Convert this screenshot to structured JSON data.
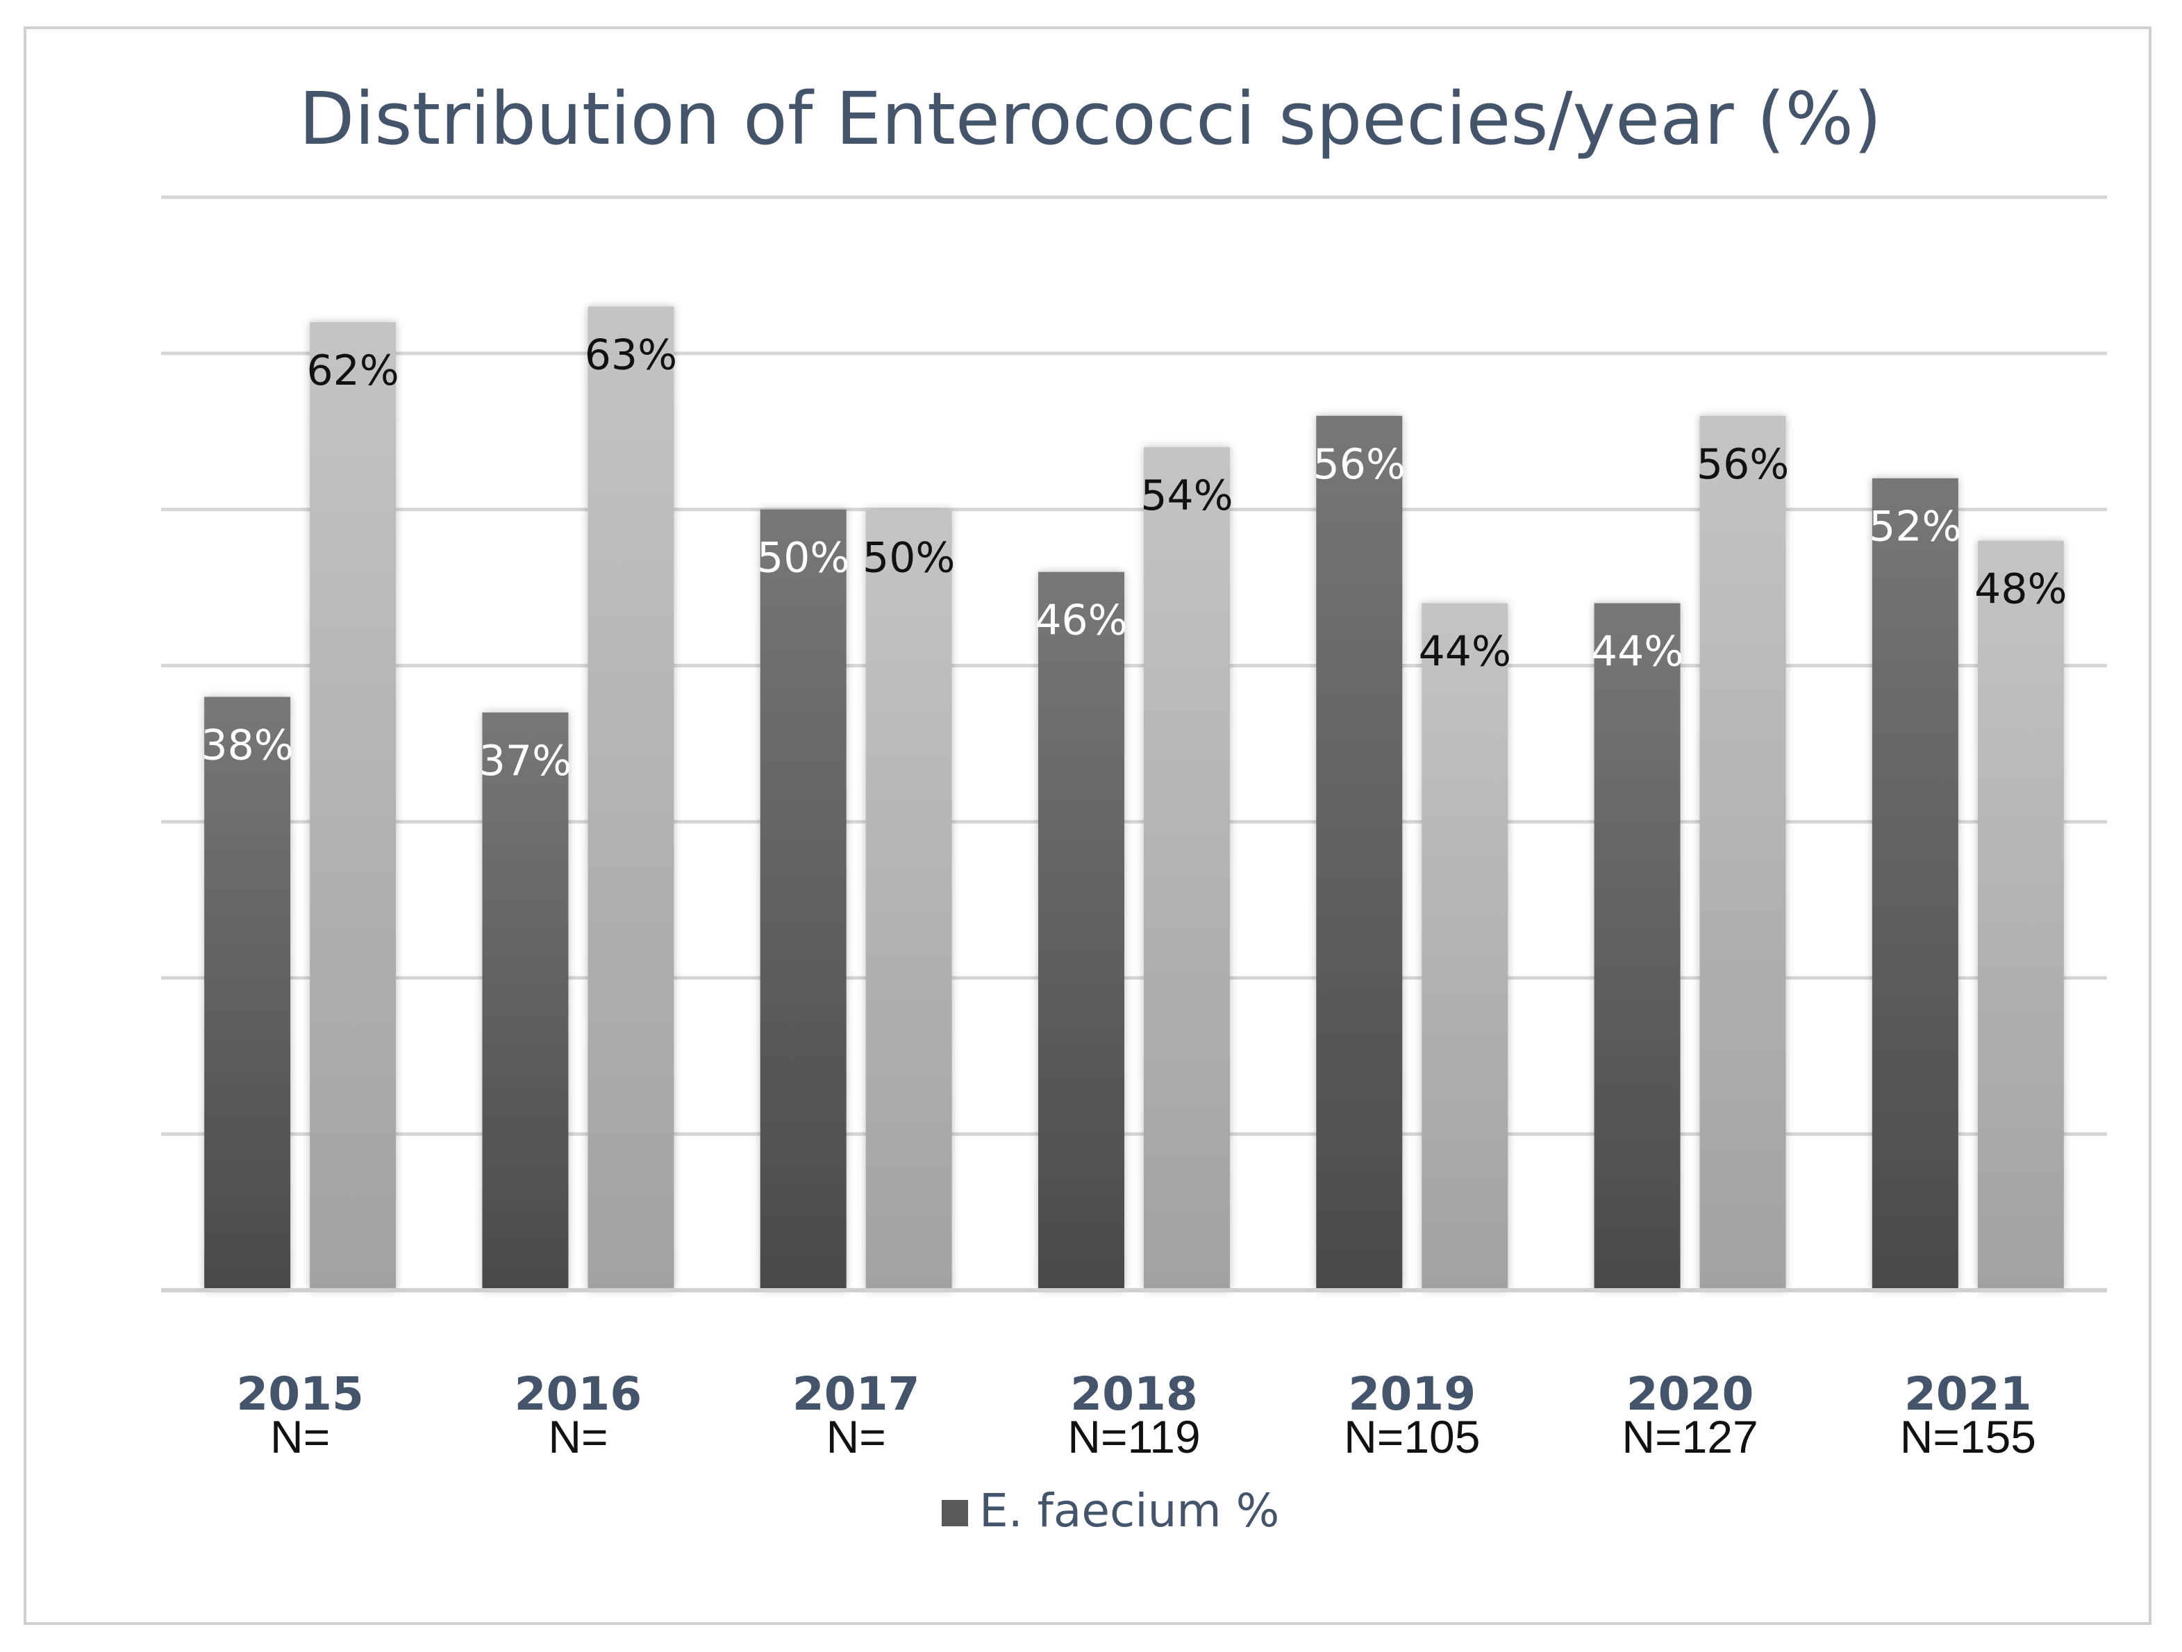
{
  "chart_data": {
    "type": "bar",
    "title": "Distribution of Enterococci species/year (%)",
    "categories": [
      "2015",
      "2016",
      "2017",
      "2018",
      "2019",
      "2020",
      "2021"
    ],
    "sample_sizes": [
      "N=",
      "N=",
      "N=",
      "N=119",
      "N=105",
      "N=127",
      "N=155"
    ],
    "series": [
      {
        "name": "E. faecium %",
        "values": [
          38,
          37,
          50,
          46,
          56,
          44,
          52
        ],
        "labels": [
          "38%",
          "37%",
          "50%",
          "46%",
          "56%",
          "44%",
          "52%"
        ],
        "color": "#595959"
      },
      {
        "name": "",
        "values": [
          62,
          63,
          50,
          54,
          44,
          56,
          48
        ],
        "labels": [
          "62%",
          "63%",
          "50%",
          "54%",
          "44%",
          "56%",
          "48%"
        ],
        "color": "#b3b3b3"
      }
    ],
    "ylim": [
      0,
      70
    ],
    "grid": true,
    "xlabel": "",
    "ylabel": "",
    "legend_position": "bottom"
  }
}
